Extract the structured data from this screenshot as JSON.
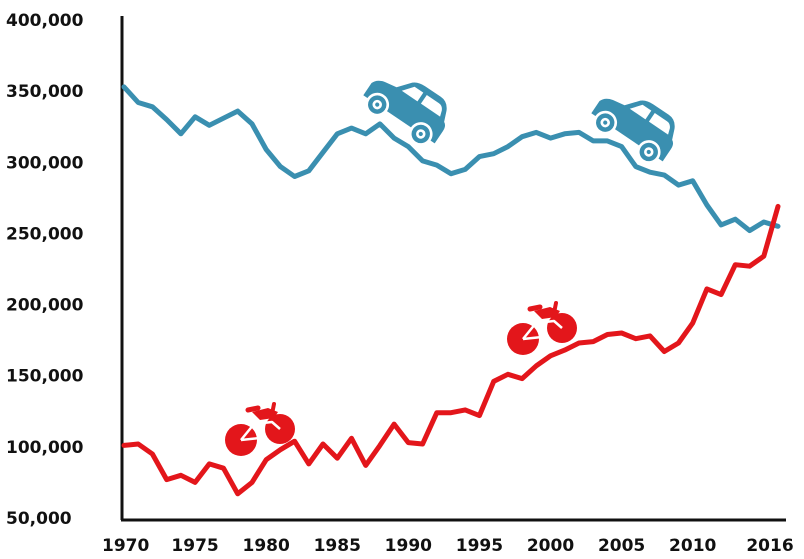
{
  "colors": {
    "cars": "#3a8fb0",
    "bikes": "#e3161b",
    "axis": "#111111",
    "background": "#ffffff"
  },
  "icons": {
    "cars": "car-icon",
    "bikes": "bicycle-icon"
  },
  "chart_data": {
    "type": "line",
    "title": "",
    "xlabel": "",
    "ylabel": "",
    "xlim": [
      1970,
      2016
    ],
    "ylim": [
      50000,
      400000
    ],
    "grid": false,
    "legend": "none",
    "y_ticks": [
      50000,
      100000,
      150000,
      200000,
      250000,
      300000,
      350000,
      400000
    ],
    "y_tick_labels": [
      "50,000",
      "100,000",
      "150,000",
      "200,000",
      "250,000",
      "300,000",
      "350,000",
      "400,000"
    ],
    "x_ticks": [
      1970,
      1975,
      1980,
      1985,
      1990,
      1995,
      2000,
      2005,
      2010,
      2016
    ],
    "x_tick_labels": [
      "1970",
      "1975",
      "1980",
      "1985",
      "1990",
      "1995",
      "2000",
      "2005",
      "2010",
      "2016"
    ],
    "x": [
      1970,
      1971,
      1972,
      1973,
      1974,
      1975,
      1976,
      1977,
      1978,
      1979,
      1980,
      1981,
      1982,
      1983,
      1984,
      1985,
      1986,
      1987,
      1988,
      1989,
      1990,
      1991,
      1992,
      1993,
      1994,
      1995,
      1996,
      1997,
      1998,
      1999,
      2000,
      2001,
      2002,
      2003,
      2004,
      2005,
      2006,
      2007,
      2008,
      2009,
      2010,
      2011,
      2012,
      2013,
      2014,
      2015,
      2016
    ],
    "series": [
      {
        "key": "cars",
        "values": [
          353000,
          342000,
          339000,
          330000,
          320000,
          332000,
          326000,
          331000,
          336000,
          327000,
          309000,
          297000,
          290000,
          294000,
          307000,
          320000,
          324000,
          320000,
          327000,
          317000,
          311000,
          301000,
          298000,
          292000,
          295000,
          304000,
          306000,
          311000,
          318000,
          321000,
          317000,
          320000,
          321000,
          315000,
          315000,
          311000,
          297000,
          293000,
          291000,
          284000,
          287000,
          270000,
          256000,
          260000,
          252000,
          258000,
          255000
        ]
      },
      {
        "key": "bikes",
        "values": [
          101000,
          102000,
          95000,
          77000,
          80000,
          75000,
          88000,
          85000,
          67000,
          75000,
          91000,
          98000,
          104000,
          88000,
          102000,
          92000,
          106000,
          87000,
          101000,
          116000,
          103000,
          102000,
          124000,
          124000,
          126000,
          122000,
          146000,
          151000,
          148000,
          157000,
          164000,
          168000,
          173000,
          174000,
          179000,
          180000,
          176000,
          178000,
          167000,
          173000,
          187000,
          211000,
          207000,
          228000,
          227000,
          234000,
          269000
        ]
      }
    ]
  }
}
